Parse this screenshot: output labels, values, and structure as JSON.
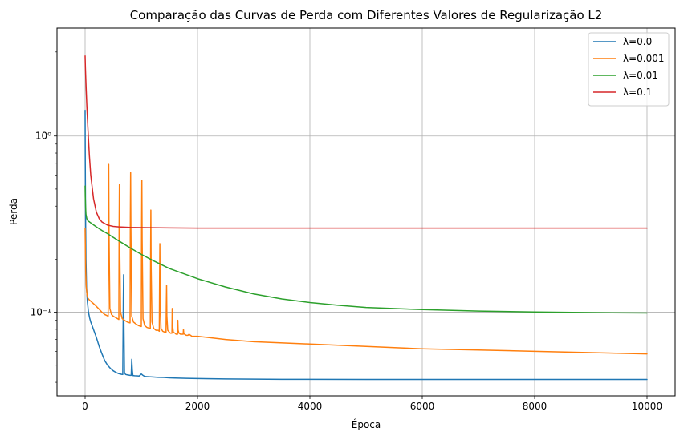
{
  "chart_data": {
    "type": "line",
    "title": "Comparação das Curvas de Perda com Diferentes Valores de Regularização L2",
    "xlabel": "Época",
    "ylabel": "Perda",
    "xlim": [
      -500,
      10500
    ],
    "ylim": [
      0.0335,
      4.1
    ],
    "yscale": "log",
    "grid": true,
    "legend_position": "top-right",
    "x_ticks": [
      0,
      2000,
      4000,
      6000,
      8000,
      10000
    ],
    "x_tick_labels": [
      "0",
      "2000",
      "4000",
      "6000",
      "8000",
      "10000"
    ],
    "y_major_ticks": [
      0.1,
      1
    ],
    "y_major_tick_labels": [
      "10⁻¹",
      "10⁰"
    ],
    "y_minor_ticks": [
      0.04,
      0.05,
      0.06,
      0.07,
      0.08,
      0.09,
      0.2,
      0.3,
      0.4,
      0.5,
      0.6,
      0.7,
      0.8,
      0.9,
      2,
      3,
      4
    ],
    "series": [
      {
        "name": "λ=0.0",
        "color": "#1f77b4",
        "x": [
          0,
          3,
          8,
          15,
          25,
          40,
          60,
          80,
          100,
          130,
          160,
          200,
          250,
          300,
          350,
          400,
          450,
          500,
          550,
          600,
          650,
          670,
          680,
          685,
          690,
          700,
          720,
          750,
          800,
          820,
          830,
          840,
          850,
          880,
          920,
          960,
          1000,
          1030,
          1060,
          1100,
          1200,
          1300,
          1400,
          1500,
          1600,
          1800,
          2000,
          2500,
          3000,
          3500,
          4000,
          5000,
          6000,
          7000,
          8000,
          9000,
          10000
        ],
        "y": [
          1.4,
          0.7,
          0.35,
          0.2,
          0.14,
          0.115,
          0.1,
          0.093,
          0.088,
          0.083,
          0.078,
          0.072,
          0.064,
          0.058,
          0.053,
          0.05,
          0.048,
          0.0465,
          0.0455,
          0.0448,
          0.0444,
          0.0443,
          0.12,
          0.163,
          0.09,
          0.0455,
          0.0443,
          0.0441,
          0.0438,
          0.0438,
          0.054,
          0.047,
          0.0437,
          0.0436,
          0.0435,
          0.0434,
          0.0446,
          0.0438,
          0.0432,
          0.0431,
          0.0429,
          0.0427,
          0.0426,
          0.0424,
          0.0423,
          0.0421,
          0.042,
          0.0418,
          0.0417,
          0.0416,
          0.0416,
          0.0415,
          0.0415,
          0.0415,
          0.0415,
          0.0415,
          0.0415
        ]
      },
      {
        "name": "λ=0.001",
        "color": "#ff7f0e",
        "x": [
          0,
          5,
          10,
          20,
          35,
          50,
          80,
          120,
          160,
          200,
          250,
          300,
          350,
          410,
          415,
          420,
          425,
          440,
          470,
          500,
          550,
          600,
          605,
          610,
          615,
          630,
          660,
          700,
          750,
          800,
          805,
          810,
          815,
          830,
          860,
          900,
          950,
          1000,
          1005,
          1010,
          1015,
          1030,
          1060,
          1100,
          1150,
          1160,
          1165,
          1170,
          1175,
          1190,
          1220,
          1260,
          1300,
          1320,
          1325,
          1330,
          1335,
          1350,
          1380,
          1420,
          1440,
          1445,
          1450,
          1455,
          1470,
          1500,
          1520,
          1545,
          1550,
          1555,
          1570,
          1600,
          1620,
          1645,
          1650,
          1655,
          1670,
          1700,
          1720,
          1745,
          1750,
          1755,
          1770,
          1800,
          1830,
          1850,
          1900,
          2000,
          2500,
          3000,
          4000,
          5000,
          6000,
          7000,
          8000,
          9000,
          10000
        ],
        "y": [
          0.3,
          0.22,
          0.17,
          0.14,
          0.125,
          0.12,
          0.117,
          0.114,
          0.111,
          0.108,
          0.104,
          0.1,
          0.097,
          0.095,
          0.4,
          0.69,
          0.3,
          0.105,
          0.097,
          0.095,
          0.093,
          0.091,
          0.3,
          0.53,
          0.25,
          0.1,
          0.092,
          0.09,
          0.088,
          0.087,
          0.35,
          0.62,
          0.3,
          0.095,
          0.088,
          0.086,
          0.084,
          0.083,
          0.3,
          0.56,
          0.26,
          0.092,
          0.084,
          0.082,
          0.081,
          0.081,
          0.2,
          0.38,
          0.18,
          0.088,
          0.081,
          0.079,
          0.079,
          0.078,
          0.15,
          0.245,
          0.12,
          0.081,
          0.078,
          0.077,
          0.077,
          0.11,
          0.142,
          0.095,
          0.079,
          0.077,
          0.076,
          0.076,
          0.105,
          0.085,
          0.077,
          0.076,
          0.075,
          0.075,
          0.09,
          0.079,
          0.076,
          0.075,
          0.075,
          0.075,
          0.08,
          0.076,
          0.075,
          0.074,
          0.074,
          0.075,
          0.073,
          0.073,
          0.07,
          0.068,
          0.066,
          0.064,
          0.062,
          0.061,
          0.06,
          0.059,
          0.058
        ]
      },
      {
        "name": "λ=0.01",
        "color": "#2ca02c",
        "x": [
          0,
          3,
          8,
          15,
          30,
          50,
          80,
          120,
          200,
          300,
          400,
          500,
          600,
          800,
          1000,
          1200,
          1500,
          2000,
          2500,
          3000,
          3500,
          4000,
          4500,
          5000,
          6000,
          7000,
          8000,
          9000,
          10000
        ],
        "y": [
          0.52,
          0.45,
          0.4,
          0.36,
          0.34,
          0.33,
          0.325,
          0.318,
          0.305,
          0.291,
          0.279,
          0.266,
          0.254,
          0.232,
          0.213,
          0.197,
          0.177,
          0.155,
          0.139,
          0.127,
          0.119,
          0.1135,
          0.1095,
          0.1065,
          0.1035,
          0.1015,
          0.1003,
          0.0995,
          0.099
        ]
      },
      {
        "name": "λ=0.1",
        "color": "#d62728",
        "x": [
          0,
          5,
          10,
          20,
          30,
          50,
          75,
          100,
          150,
          200,
          250,
          300,
          400,
          500,
          600,
          800,
          1000,
          1500,
          2000,
          3000,
          4000,
          6000,
          8000,
          10000
        ],
        "y": [
          2.85,
          2.45,
          2.2,
          1.8,
          1.5,
          1.1,
          0.78,
          0.6,
          0.44,
          0.37,
          0.34,
          0.325,
          0.312,
          0.307,
          0.305,
          0.303,
          0.302,
          0.301,
          0.3,
          0.3,
          0.3,
          0.3,
          0.3,
          0.3
        ]
      }
    ]
  }
}
